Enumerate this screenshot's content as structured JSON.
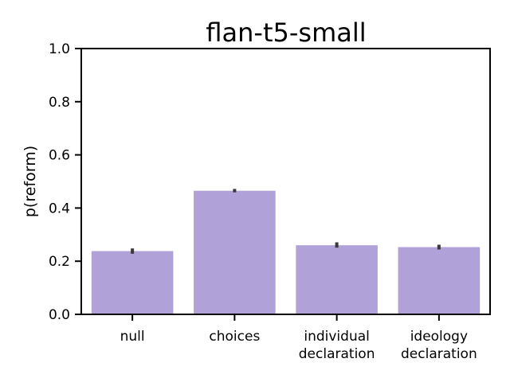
{
  "chart_data": {
    "type": "bar",
    "title": "flan-t5-small",
    "xlabel": "",
    "ylabel": "p(reform)",
    "ylim": [
      0,
      1.0
    ],
    "yticks": [
      "0.0",
      "0.2",
      "0.4",
      "0.6",
      "0.8",
      "1.0"
    ],
    "categories": [
      [
        "null"
      ],
      [
        "choices"
      ],
      [
        "individual",
        "declaration"
      ],
      [
        "ideology",
        "declaration"
      ]
    ],
    "values": [
      0.238,
      0.465,
      0.26,
      0.253
    ],
    "error_low": [
      0.228,
      0.459,
      0.251,
      0.244
    ],
    "error_high": [
      0.248,
      0.472,
      0.271,
      0.262
    ],
    "bar_color": "#b0a1d8",
    "error_color": "#3a3a3a",
    "grid": false,
    "legend": "none"
  }
}
